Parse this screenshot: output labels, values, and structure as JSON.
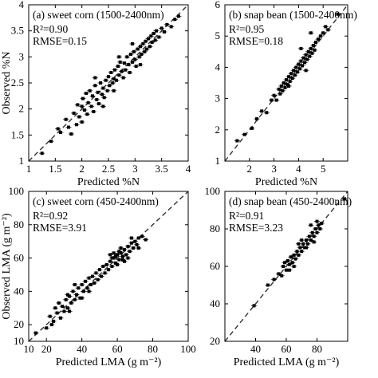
{
  "chart_data": [
    {
      "type": "scatter",
      "panel_label": "(a) sweet corn (1500-2400nm)",
      "stats": [
        "R²=0.90",
        "RMSE=0.15"
      ],
      "xlabel": "Predicted %N",
      "ylabel": "Observed %N",
      "xlim": [
        1,
        4
      ],
      "ylim": [
        1,
        4
      ],
      "xticks": [
        1,
        1.5,
        2,
        2.5,
        3,
        3.5,
        4
      ],
      "xtick_labels": [
        "1",
        "1.5",
        "2",
        "2.5",
        "3",
        "3.5",
        "4"
      ],
      "yticks": [
        1,
        1.5,
        2,
        2.5,
        3,
        3.5,
        4
      ],
      "ytick_labels": [
        "1",
        "1.5",
        "2",
        "2.5",
        "3",
        "3.5",
        "4"
      ],
      "reference_line": "1:1 dashed",
      "series": [
        {
          "points": [
            [
              1.25,
              1.15
            ],
            [
              1.42,
              1.38
            ],
            [
              1.55,
              1.62
            ],
            [
              1.6,
              1.55
            ],
            [
              1.7,
              1.8
            ],
            [
              1.75,
              1.65
            ],
            [
              1.8,
              1.52
            ],
            [
              1.85,
              1.92
            ],
            [
              1.9,
              1.7
            ],
            [
              1.92,
              2.08
            ],
            [
              1.95,
              1.85
            ],
            [
              2.0,
              2.05
            ],
            [
              2.0,
              1.75
            ],
            [
              2.02,
              2.2
            ],
            [
              2.05,
              1.98
            ],
            [
              2.08,
              2.3
            ],
            [
              2.1,
              1.9
            ],
            [
              2.12,
              2.12
            ],
            [
              2.15,
              2.35
            ],
            [
              2.18,
              2.05
            ],
            [
              2.2,
              2.25
            ],
            [
              2.22,
              1.95
            ],
            [
              2.25,
              2.45
            ],
            [
              2.28,
              2.18
            ],
            [
              2.3,
              2.32
            ],
            [
              2.32,
              2.1
            ],
            [
              2.35,
              2.5
            ],
            [
              2.38,
              2.28
            ],
            [
              2.4,
              2.4
            ],
            [
              2.42,
              2.22
            ],
            [
              2.45,
              2.55
            ],
            [
              2.48,
              2.35
            ],
            [
              2.5,
              2.62
            ],
            [
              2.52,
              2.45
            ],
            [
              2.55,
              2.7
            ],
            [
              2.58,
              2.5
            ],
            [
              2.6,
              2.58
            ],
            [
              2.62,
              2.75
            ],
            [
              2.65,
              2.55
            ],
            [
              2.68,
              2.82
            ],
            [
              2.7,
              2.65
            ],
            [
              2.72,
              2.9
            ],
            [
              2.75,
              2.72
            ],
            [
              2.78,
              2.6
            ],
            [
              2.8,
              2.88
            ],
            [
              2.82,
              2.75
            ],
            [
              2.85,
              3.0
            ],
            [
              2.88,
              2.85
            ],
            [
              2.9,
              2.7
            ],
            [
              2.92,
              3.05
            ],
            [
              2.95,
              2.9
            ],
            [
              2.98,
              3.1
            ],
            [
              3.0,
              2.95
            ],
            [
              3.02,
              2.82
            ],
            [
              3.05,
              3.15
            ],
            [
              3.08,
              3.0
            ],
            [
              3.1,
              3.2
            ],
            [
              3.12,
              3.05
            ],
            [
              3.15,
              3.25
            ],
            [
              3.18,
              3.1
            ],
            [
              3.2,
              3.3
            ],
            [
              3.22,
              3.15
            ],
            [
              3.25,
              3.35
            ],
            [
              3.28,
              3.2
            ],
            [
              3.3,
              3.4
            ],
            [
              3.32,
              3.28
            ],
            [
              3.35,
              3.45
            ],
            [
              3.38,
              3.32
            ],
            [
              3.4,
              3.5
            ],
            [
              3.45,
              3.38
            ],
            [
              3.5,
              3.55
            ],
            [
              3.55,
              3.48
            ],
            [
              3.6,
              3.62
            ],
            [
              3.68,
              3.58
            ],
            [
              3.75,
              3.72
            ],
            [
              3.82,
              3.78
            ],
            [
              2.25,
              2.6
            ],
            [
              2.6,
              2.35
            ],
            [
              2.95,
              3.25
            ],
            [
              3.1,
              2.85
            ],
            [
              2.4,
              2.05
            ],
            [
              2.7,
              3.0
            ]
          ]
        }
      ]
    },
    {
      "type": "scatter",
      "panel_label": "(b) snap bean (1500-2400nm)",
      "stats": [
        "R²=0.95",
        "RMSE=0.18"
      ],
      "xlabel": "Predicted %N",
      "ylabel": "",
      "xlim": [
        1,
        6
      ],
      "ylim": [
        1,
        6
      ],
      "xticks": [
        2,
        3,
        4,
        5
      ],
      "xtick_labels": [
        "2",
        "3",
        "4",
        "5"
      ],
      "yticks": [
        1,
        2,
        3,
        4,
        5,
        6
      ],
      "ytick_labels": [
        "1",
        "2",
        "3",
        "4",
        "5",
        "6"
      ],
      "reference_line": "1:1 dashed",
      "series": [
        {
          "points": [
            [
              1.5,
              1.65
            ],
            [
              1.8,
              1.85
            ],
            [
              2.1,
              2.05
            ],
            [
              2.3,
              2.35
            ],
            [
              2.5,
              2.6
            ],
            [
              2.7,
              2.55
            ],
            [
              2.9,
              2.95
            ],
            [
              3.0,
              3.1
            ],
            [
              3.1,
              2.95
            ],
            [
              3.2,
              3.3
            ],
            [
              3.25,
              3.15
            ],
            [
              3.3,
              3.4
            ],
            [
              3.35,
              3.25
            ],
            [
              3.4,
              3.5
            ],
            [
              3.45,
              3.35
            ],
            [
              3.5,
              3.6
            ],
            [
              3.55,
              3.45
            ],
            [
              3.6,
              3.7
            ],
            [
              3.65,
              3.55
            ],
            [
              3.7,
              3.8
            ],
            [
              3.75,
              3.65
            ],
            [
              3.8,
              3.9
            ],
            [
              3.85,
              3.75
            ],
            [
              3.9,
              4.0
            ],
            [
              3.95,
              3.85
            ],
            [
              4.0,
              4.1
            ],
            [
              4.05,
              3.95
            ],
            [
              4.1,
              4.2
            ],
            [
              4.15,
              4.05
            ],
            [
              4.2,
              4.3
            ],
            [
              4.25,
              4.15
            ],
            [
              4.3,
              4.4
            ],
            [
              4.35,
              4.25
            ],
            [
              4.4,
              4.5
            ],
            [
              4.45,
              4.35
            ],
            [
              4.5,
              4.6
            ],
            [
              4.55,
              4.45
            ],
            [
              4.6,
              4.7
            ],
            [
              4.65,
              4.55
            ],
            [
              4.7,
              4.8
            ],
            [
              4.8,
              4.9
            ],
            [
              4.9,
              5.0
            ],
            [
              5.0,
              5.1
            ],
            [
              5.1,
              5.3
            ],
            [
              5.2,
              5.2
            ],
            [
              5.6,
              5.7
            ],
            [
              4.1,
              4.6
            ],
            [
              4.3,
              3.9
            ],
            [
              3.6,
              3.4
            ],
            [
              4.5,
              5.1
            ]
          ]
        }
      ]
    },
    {
      "type": "scatter",
      "panel_label": "(c) sweet corn (450-2400nm)",
      "stats": [
        "R²=0.92",
        "RMSE=3.91"
      ],
      "xlabel": "Predicted LMA (g m⁻²)",
      "ylabel": "Observed LMA (g m⁻²)",
      "xlim": [
        10,
        100
      ],
      "ylim": [
        10,
        100
      ],
      "xticks": [
        10,
        20,
        40,
        60,
        80,
        100
      ],
      "xtick_labels": [
        "10",
        "20",
        "40",
        "60",
        "80",
        "100"
      ],
      "yticks": [
        10,
        20,
        40,
        60,
        80,
        100
      ],
      "ytick_labels": [
        "10",
        "20",
        "40",
        "60",
        "80",
        "100"
      ],
      "reference_line": "1:1 dashed",
      "series": [
        {
          "points": [
            [
              14,
              15
            ],
            [
              20,
              18
            ],
            [
              22,
              25
            ],
            [
              24,
              22
            ],
            [
              25,
              30
            ],
            [
              26,
              27
            ],
            [
              27,
              33
            ],
            [
              28,
              24
            ],
            [
              29,
              31
            ],
            [
              30,
              28
            ],
            [
              31,
              35
            ],
            [
              32,
              30
            ],
            [
              33,
              37
            ],
            [
              34,
              33
            ],
            [
              35,
              40
            ],
            [
              36,
              35
            ],
            [
              37,
              38
            ],
            [
              38,
              42
            ],
            [
              39,
              36
            ],
            [
              40,
              44
            ],
            [
              41,
              40
            ],
            [
              42,
              46
            ],
            [
              43,
              42
            ],
            [
              44,
              48
            ],
            [
              45,
              44
            ],
            [
              46,
              49
            ],
            [
              47,
              45
            ],
            [
              48,
              51
            ],
            [
              49,
              47
            ],
            [
              50,
              53
            ],
            [
              51,
              49
            ],
            [
              52,
              55
            ],
            [
              53,
              51
            ],
            [
              54,
              56
            ],
            [
              55,
              53
            ],
            [
              56,
              58
            ],
            [
              57,
              55
            ],
            [
              58,
              60
            ],
            [
              59,
              57
            ],
            [
              60,
              62
            ],
            [
              61,
              59
            ],
            [
              62,
              63
            ],
            [
              63,
              61
            ],
            [
              64,
              65
            ],
            [
              65,
              62
            ],
            [
              66,
              67
            ],
            [
              67,
              64
            ],
            [
              68,
              69
            ],
            [
              69,
              66
            ],
            [
              70,
              70
            ],
            [
              71,
              68
            ],
            [
              72,
              72
            ],
            [
              74,
              73
            ],
            [
              76,
              71
            ],
            [
              64,
              58
            ],
            [
              58,
              63
            ],
            [
              62,
              66
            ],
            [
              60,
              56
            ],
            [
              66,
              60
            ],
            [
              56,
              62
            ],
            [
              36,
              44
            ],
            [
              40,
              36
            ],
            [
              32,
              38
            ],
            [
              44,
              40
            ],
            [
              72,
              66
            ],
            [
              68,
              72
            ],
            [
              61,
              64
            ],
            [
              59,
              61
            ],
            [
              63,
              59
            ],
            [
              57,
              60
            ],
            [
              23,
              20
            ],
            [
              33,
              28
            ]
          ]
        }
      ]
    },
    {
      "type": "scatter",
      "panel_label": "(d) snap bean (450-2400nm)",
      "stats": [
        "R²=0.91",
        "RMSE=3.23"
      ],
      "xlabel": "Predicted LMA (g m⁻²)",
      "ylabel": "",
      "xlim": [
        20,
        100
      ],
      "ylim": [
        20,
        100
      ],
      "xticks": [
        40,
        60,
        80
      ],
      "xtick_labels": [
        "40",
        "60",
        "80"
      ],
      "yticks": [
        20,
        40,
        60,
        80,
        100
      ],
      "ytick_labels": [
        "20",
        "40",
        "60",
        "80",
        "100"
      ],
      "reference_line": "1:1 dashed",
      "series": [
        {
          "points": [
            [
              39,
              39
            ],
            [
              48,
              50
            ],
            [
              52,
              53
            ],
            [
              55,
              56
            ],
            [
              57,
              55
            ],
            [
              58,
              60
            ],
            [
              60,
              58
            ],
            [
              61,
              63
            ],
            [
              62,
              61
            ],
            [
              63,
              65
            ],
            [
              64,
              62
            ],
            [
              65,
              66
            ],
            [
              66,
              64
            ],
            [
              67,
              68
            ],
            [
              68,
              66
            ],
            [
              69,
              70
            ],
            [
              70,
              68
            ],
            [
              71,
              72
            ],
            [
              72,
              70
            ],
            [
              73,
              74
            ],
            [
              74,
              72
            ],
            [
              75,
              76
            ],
            [
              76,
              74
            ],
            [
              77,
              78
            ],
            [
              78,
              76
            ],
            [
              79,
              80
            ],
            [
              80,
              78
            ],
            [
              81,
              82
            ],
            [
              82,
              80
            ],
            [
              83,
              83
            ],
            [
              76,
              82
            ],
            [
              70,
              74
            ],
            [
              65,
              60
            ],
            [
              62,
              58
            ],
            [
              78,
              73
            ],
            [
              80,
              84
            ],
            [
              68,
              72
            ],
            [
              73,
              70
            ],
            [
              59,
              62
            ],
            [
              98,
              96
            ]
          ]
        }
      ]
    }
  ]
}
